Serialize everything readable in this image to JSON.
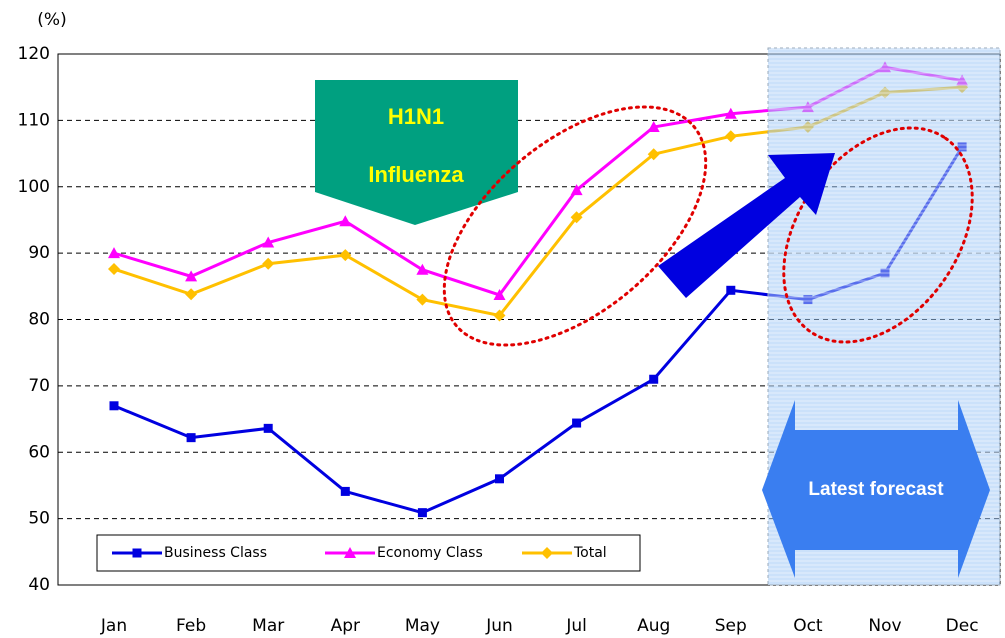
{
  "chart_data": {
    "type": "line",
    "unit_label": "(%)",
    "categories": [
      "Jan",
      "Feb",
      "Mar",
      "Apr",
      "May",
      "Jun",
      "Jul",
      "Aug",
      "Sep",
      "Oct",
      "Nov",
      "Dec"
    ],
    "series": [
      {
        "name": "Business Class",
        "color": "#0000e0",
        "marker": "square",
        "values": [
          67,
          62.2,
          63.6,
          54.1,
          50.9,
          56,
          64.4,
          71,
          84.4,
          83,
          87,
          106
        ]
      },
      {
        "name": "Economy Class",
        "color": "#ff00ff",
        "marker": "triangle",
        "values": [
          90,
          86.5,
          91.6,
          94.8,
          87.5,
          83.7,
          99.5,
          109,
          111,
          112,
          118,
          116
        ]
      },
      {
        "name": "Total",
        "color": "#ffc000",
        "marker": "diamond",
        "values": [
          87.6,
          83.8,
          88.4,
          89.7,
          83,
          80.6,
          95.4,
          104.9,
          107.6,
          109,
          114.2,
          115
        ]
      }
    ],
    "ylim": [
      40,
      120
    ],
    "yticks": [
      40,
      50,
      60,
      70,
      80,
      90,
      100,
      110,
      120
    ],
    "grid": true,
    "annotations": [
      "H1N1",
      "Influenza",
      "Latest forecast"
    ],
    "legend": "bottom-left"
  }
}
